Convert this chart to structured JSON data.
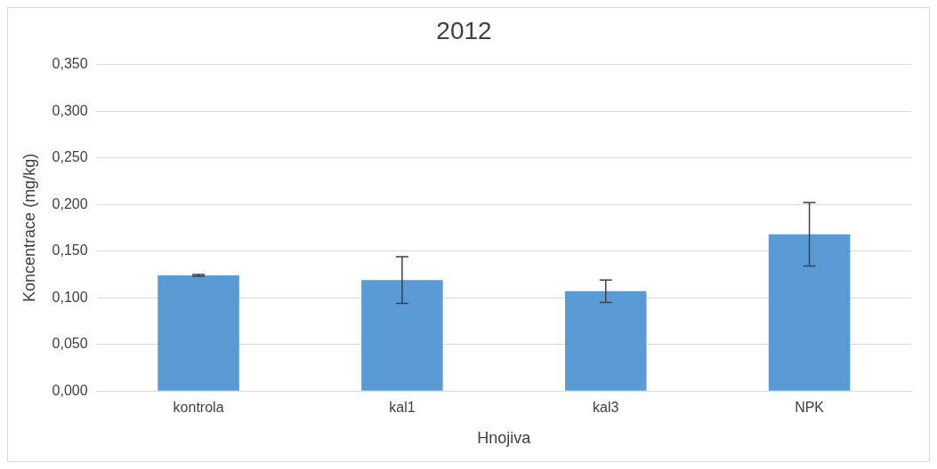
{
  "chart_data": {
    "type": "bar",
    "title": "2012",
    "xlabel": "Hnojiva",
    "ylabel": "Koncentrace (mg/kg)",
    "categories": [
      "kontrola",
      "kal1",
      "kal3",
      "NPK"
    ],
    "values": [
      0.124,
      0.119,
      0.107,
      0.168
    ],
    "errors": [
      0.001,
      0.025,
      0.012,
      0.034
    ],
    "color": "#5b9bd5",
    "ylim": [
      0,
      0.35
    ],
    "yticks": [
      {
        "value": 0,
        "label": "0,000"
      },
      {
        "value": 0.05,
        "label": "0,050"
      },
      {
        "value": 0.1,
        "label": "0,100"
      },
      {
        "value": 0.15,
        "label": "0,150"
      },
      {
        "value": 0.2,
        "label": "0,200"
      },
      {
        "value": 0.25,
        "label": "0,250"
      },
      {
        "value": 0.3,
        "label": "0,300"
      },
      {
        "value": 0.35,
        "label": "0,350"
      }
    ],
    "grid": "y",
    "legend": false
  }
}
